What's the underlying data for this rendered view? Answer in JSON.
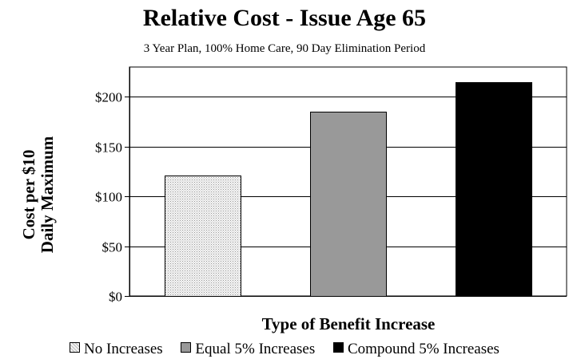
{
  "chart_data": {
    "type": "bar",
    "title": "Relative Cost - Issue Age 65",
    "subtitle": "3 Year Plan, 100% Home Care, 90 Day Elimination Period",
    "ylabel_line1": "Cost per $10",
    "ylabel_line2": "Daily Maximum",
    "xlabel": "Type of Benefit Increase",
    "categories": [
      "No Increases",
      "Equal 5% Increases",
      "Compound 5% Increases"
    ],
    "values": [
      121,
      185,
      215
    ],
    "ylim": [
      0,
      200
    ],
    "yticks": [
      0,
      50,
      100,
      150,
      200
    ],
    "ytick_labels": [
      "$0",
      "$50",
      "$100",
      "$150",
      "$200"
    ],
    "grid": true,
    "legend_position": "bottom",
    "colors": [
      "#e6e6e6",
      "#999999",
      "#000000"
    ],
    "patterns": [
      "dotted",
      "solid",
      "solid"
    ]
  }
}
